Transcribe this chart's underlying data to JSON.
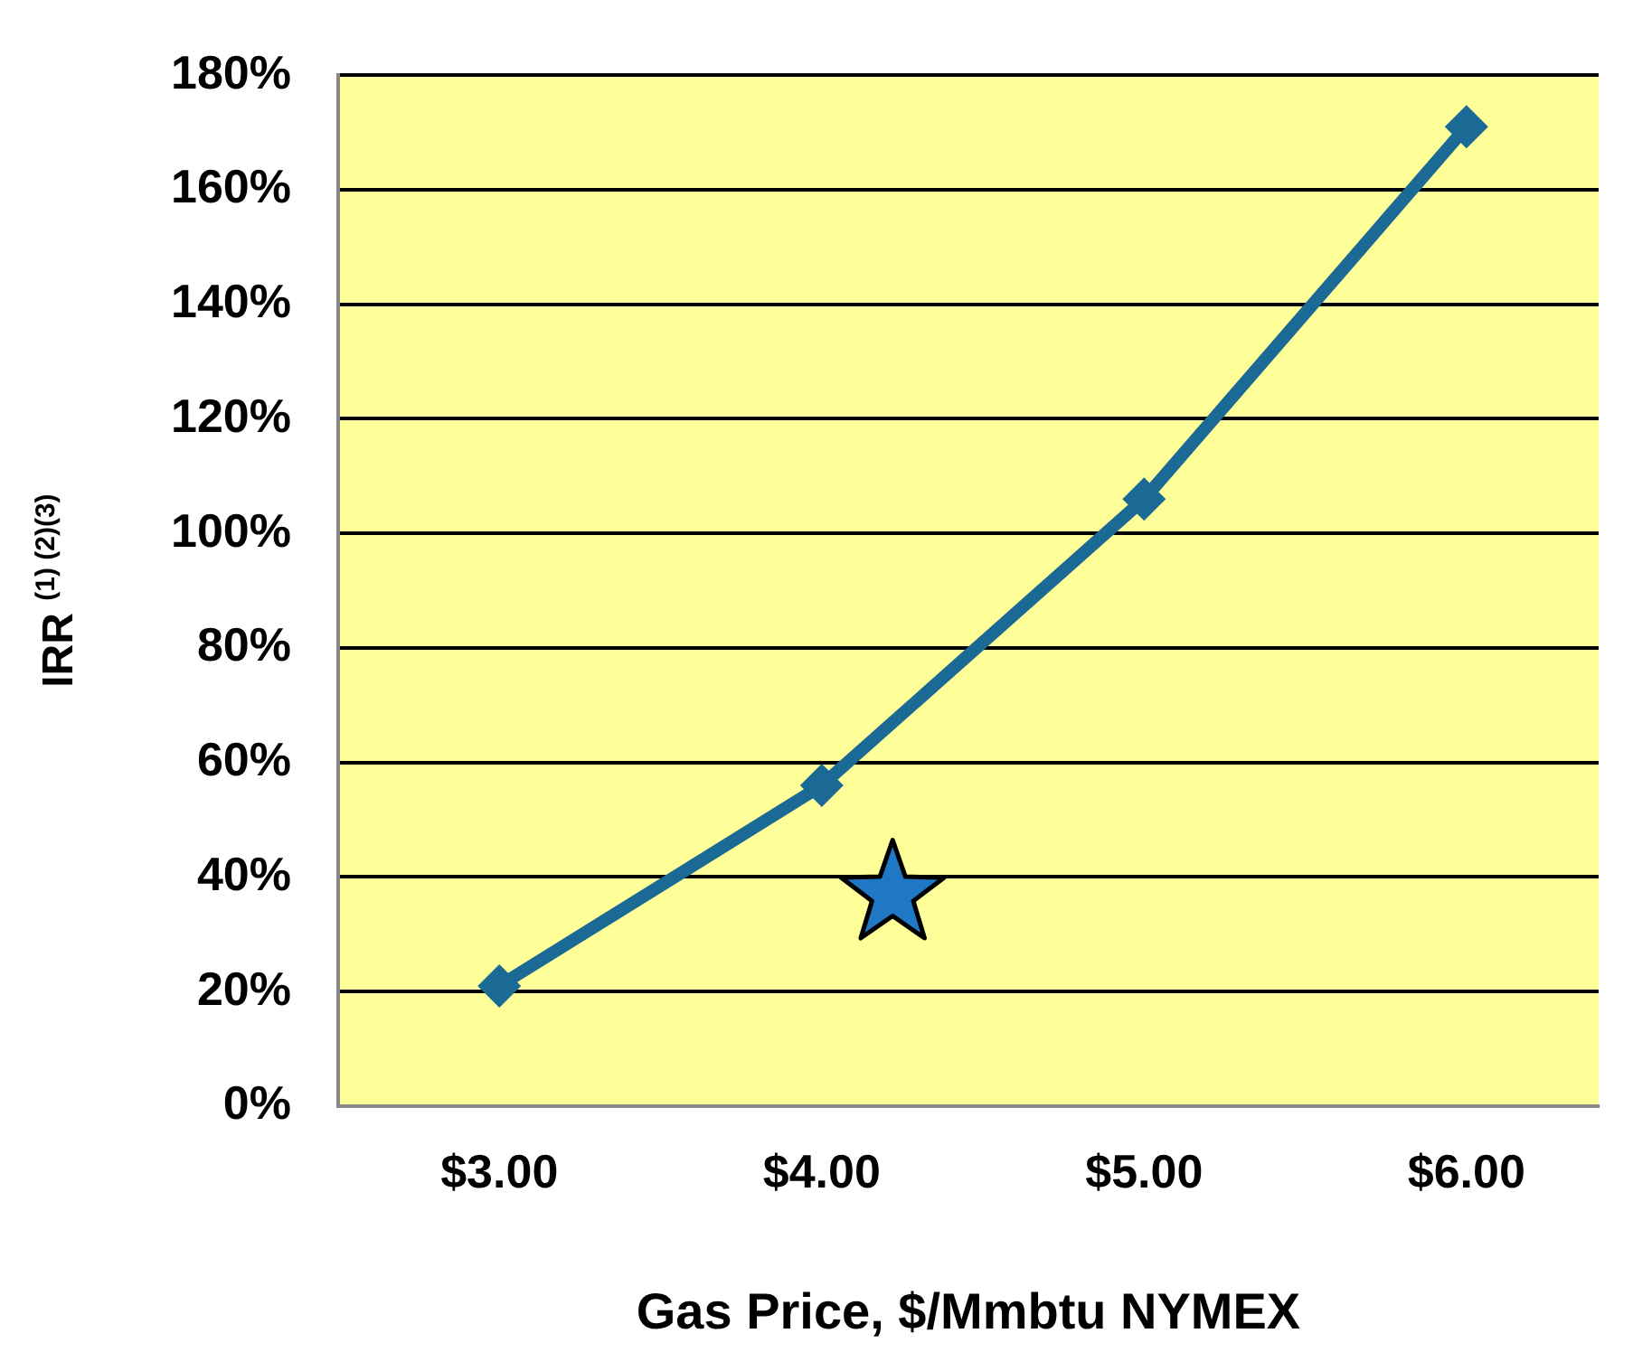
{
  "chart_data": {
    "type": "line",
    "xlabel": "Gas Price, $/Mmbtu NYMEX",
    "ylabel": "IRR $^{(1) (2)(3)}$",
    "x": [
      3,
      4,
      5,
      6
    ],
    "xlim": [
      2.5,
      6.41
    ],
    "xticks": [
      {
        "value": 3,
        "label": "$3.00"
      },
      {
        "value": 4,
        "label": "$4.00"
      },
      {
        "value": 5,
        "label": "$5.00"
      },
      {
        "value": 6,
        "label": "$6.00"
      }
    ],
    "ylim": [
      0,
      180
    ],
    "yticks": [
      {
        "value": 0,
        "label": "0%"
      },
      {
        "value": 20,
        "label": "20%"
      },
      {
        "value": 40,
        "label": "40%"
      },
      {
        "value": 60,
        "label": "60%"
      },
      {
        "value": 80,
        "label": "80%"
      },
      {
        "value": 100,
        "label": "100%"
      },
      {
        "value": 120,
        "label": "120%"
      },
      {
        "value": 140,
        "label": "140%"
      },
      {
        "value": 160,
        "label": "160%"
      },
      {
        "value": 180,
        "label": "180%"
      }
    ],
    "grid": "y",
    "legend": false,
    "line_style": "solid",
    "series": [
      {
        "color": "#1b6a96",
        "values": [
          21,
          56,
          106,
          171
        ],
        "marker": "diamond"
      },
      {
        "type": "scatter",
        "x": [
          4.22
        ],
        "values": [
          37
        ],
        "color": "#1f78c4",
        "marker": "star"
      }
    ]
  }
}
